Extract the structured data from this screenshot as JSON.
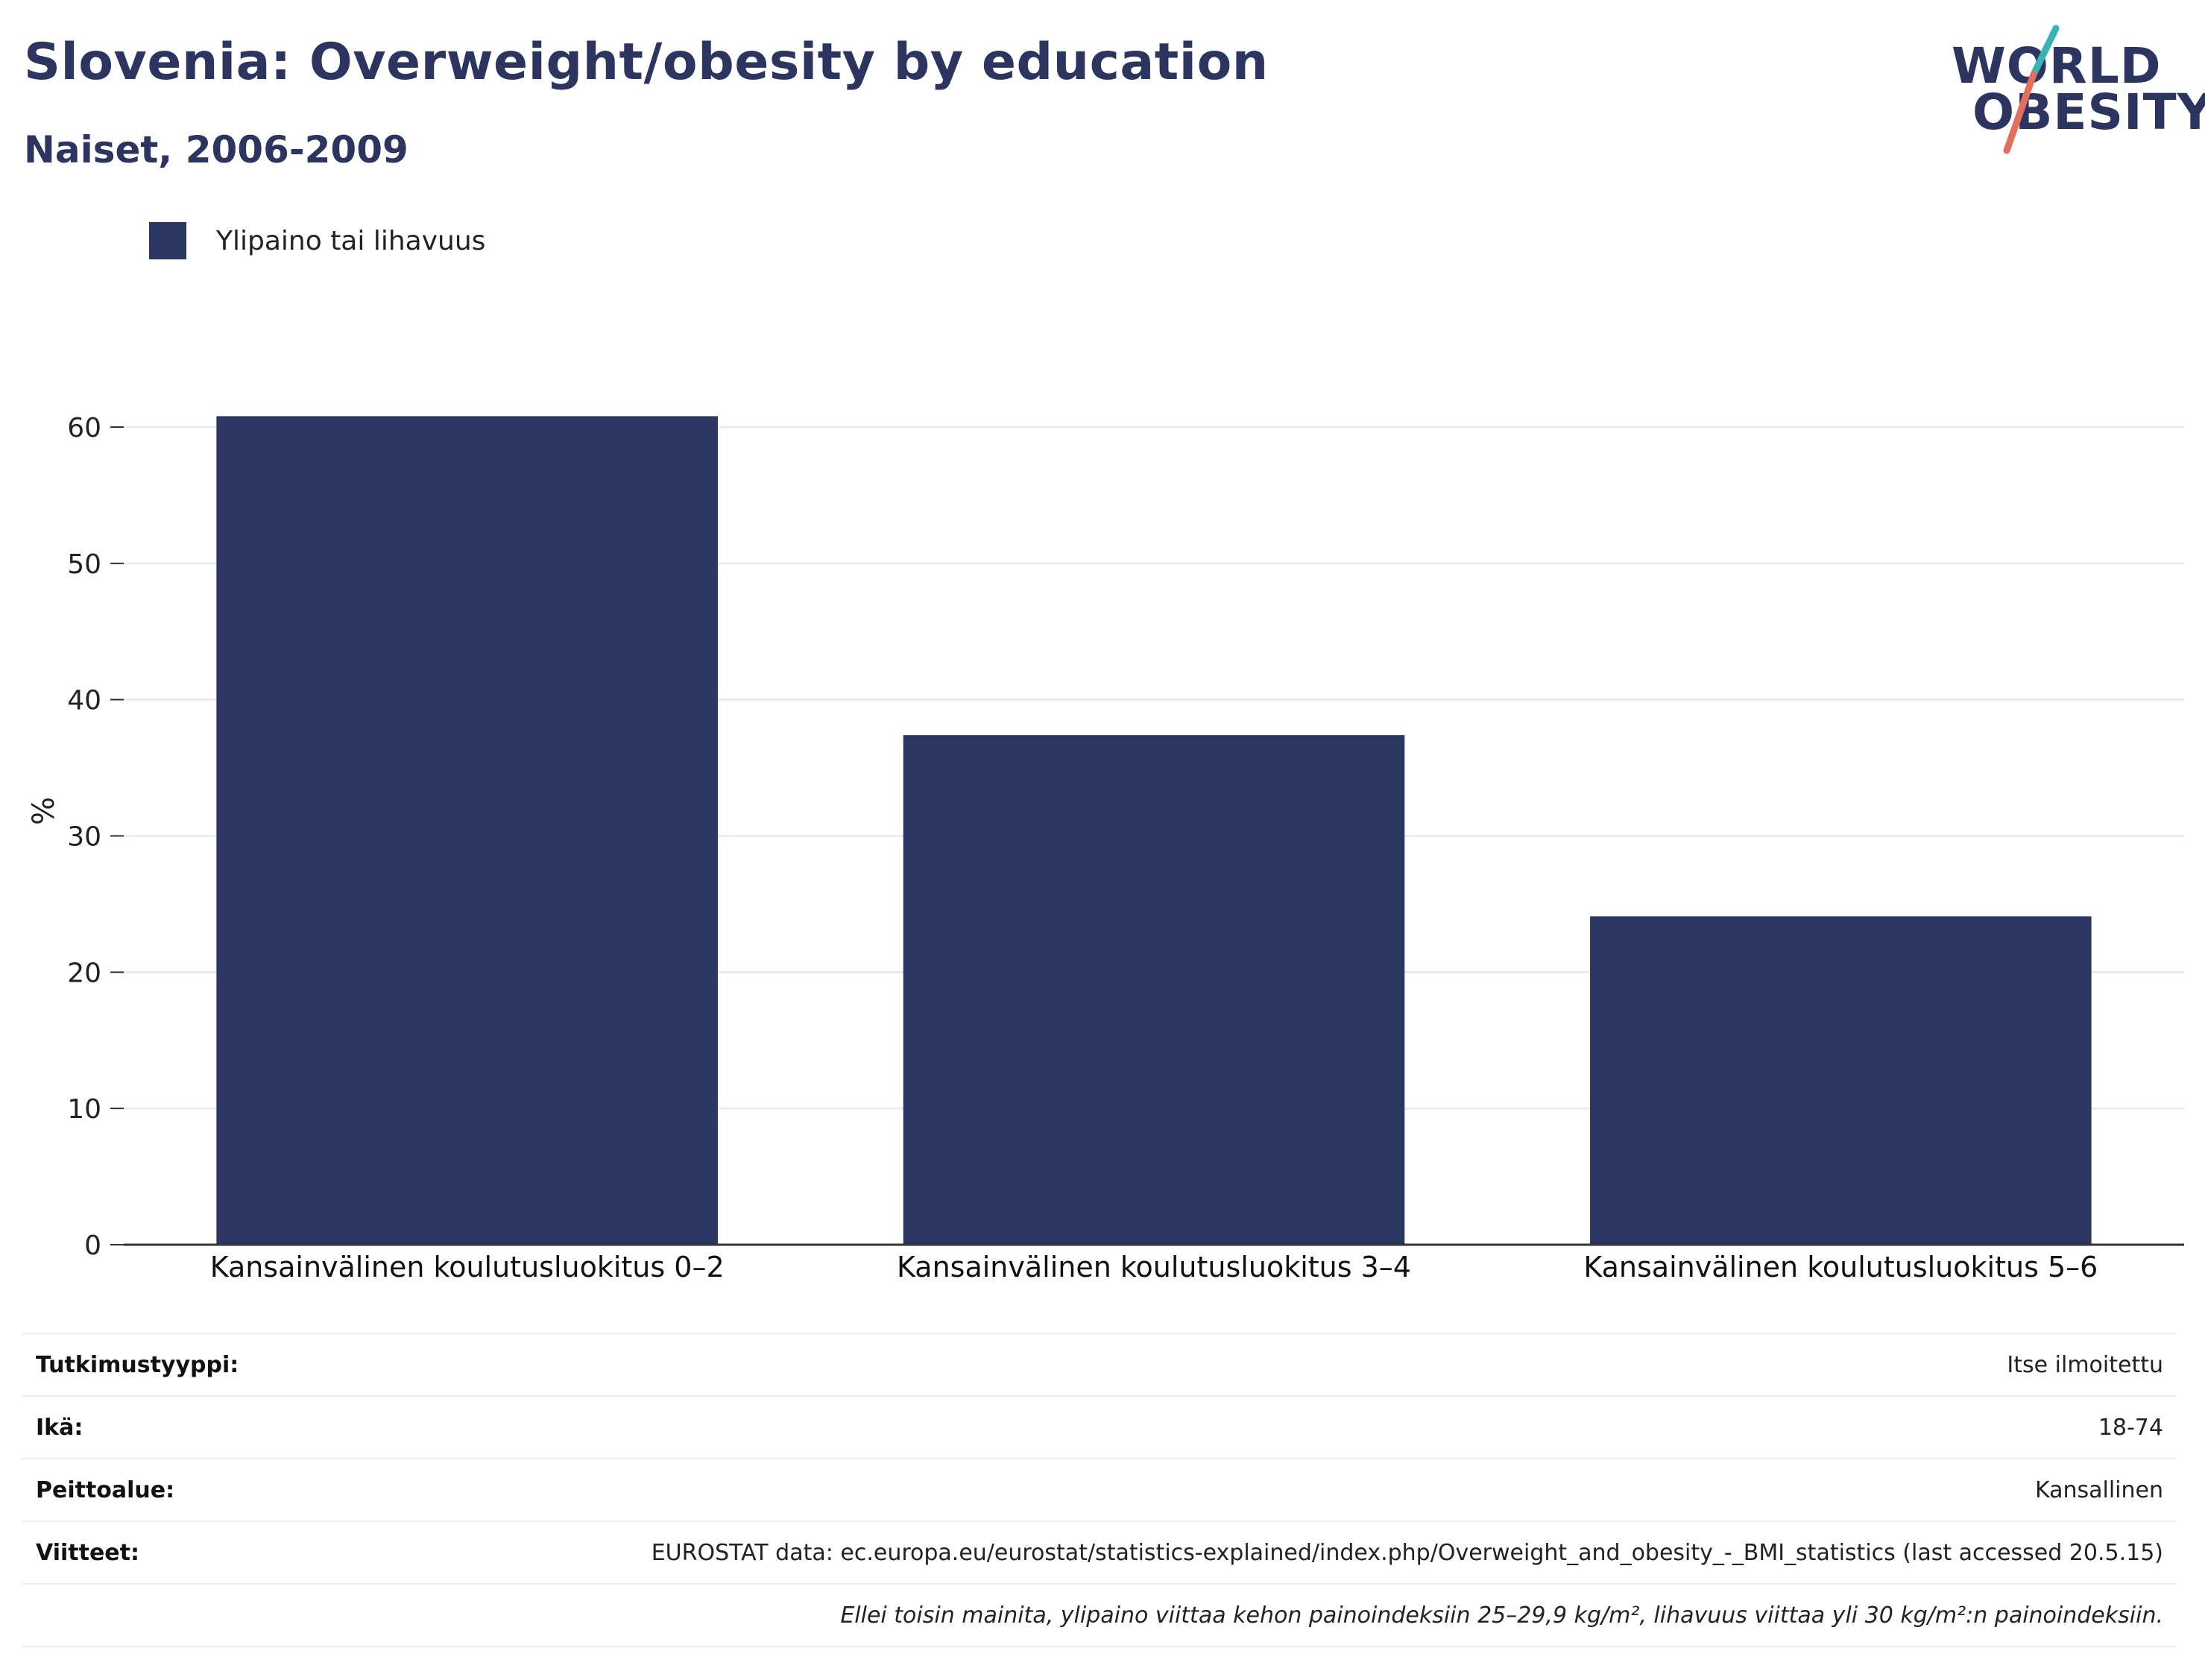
{
  "header": {
    "title": "Slovenia: Overweight/obesity by education",
    "subtitle": "Naiset, 2006-2009"
  },
  "logo": {
    "line1": "WORLD",
    "line2": "OBESITY",
    "accent_teal": "#3bb3b3",
    "accent_red": "#e2705c"
  },
  "legend": {
    "label": "Ylipaino tai lihavuus",
    "color": "#2b3762"
  },
  "chart_data": {
    "type": "bar",
    "categories": [
      "Kansainvälinen koulutusluokitus 0–2",
      "Kansainvälinen koulutusluokitus 3–4",
      "Kansainvälinen koulutusluokitus 5–6"
    ],
    "series": [
      {
        "name": "Ylipaino tai lihavuus",
        "values": [
          60.8,
          37.4,
          24.1
        ],
        "color": "#2b3762"
      }
    ],
    "ylabel": "%",
    "ylim": [
      0,
      64
    ],
    "yticks": [
      0,
      10,
      20,
      30,
      40,
      50,
      60
    ],
    "grid": true,
    "legend_position": "top-left"
  },
  "info": {
    "rows": [
      {
        "key": "Tutkimustyyppi:",
        "value": "Itse ilmoitettu"
      },
      {
        "key": "Ikä:",
        "value": "18-74"
      },
      {
        "key": "Peittoalue:",
        "value": "Kansallinen"
      },
      {
        "key": "Viitteet:",
        "value": "EUROSTAT data: ec.europa.eu/eurostat/statistics-explained/index.php/Overweight_and_obesity_-_BMI_statistics (last accessed 20.5.15)"
      }
    ],
    "note": "Ellei toisin mainita, ylipaino viittaa kehon painoindeksiin 25–29,9 kg/m², lihavuus viittaa yli 30 kg/m²:n painoindeksiin."
  }
}
